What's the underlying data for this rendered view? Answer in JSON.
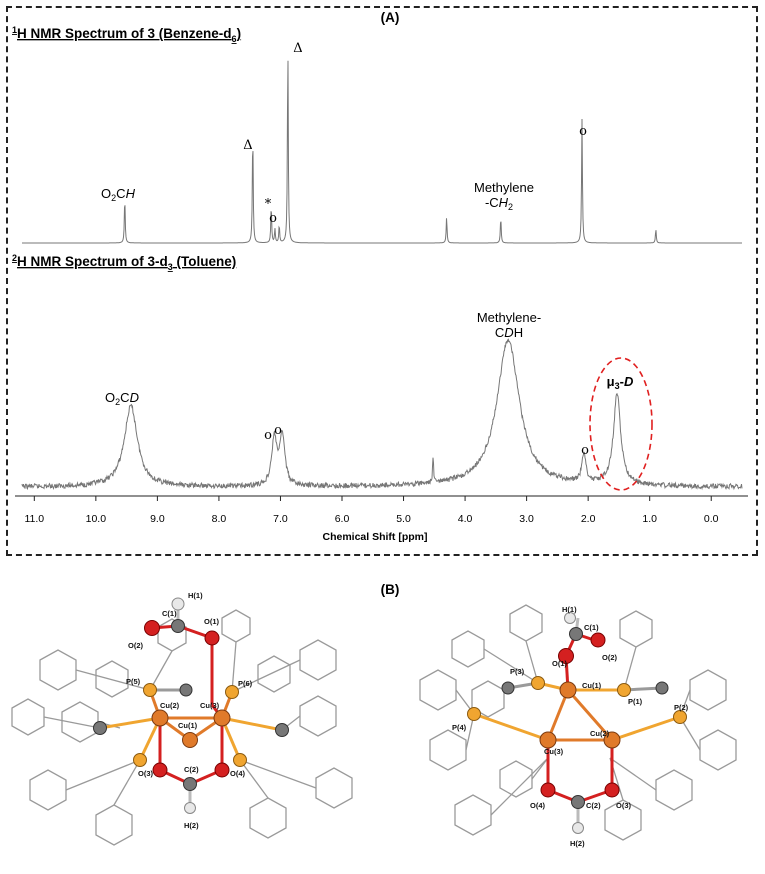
{
  "panel_a_label": "(A)",
  "panel_b_label": "(B)",
  "chart_data": [
    {
      "type": "line",
      "title": "1H NMR Spectrum of 3 (Benzene-d6)",
      "title_parts": {
        "sup": "1",
        "main": "H NMR Spectrum of 3 (Benzene-d",
        "sub": "6",
        "end": ")"
      },
      "xlabel": "Chemical Shift [ppm]",
      "xlim": [
        11.2,
        -0.5
      ],
      "peaks": [
        {
          "x": 9.53,
          "rel_height": 0.23
        },
        {
          "x": 7.45,
          "rel_height": 0.56
        },
        {
          "x": 7.15,
          "rel_height": 0.19
        },
        {
          "x": 7.09,
          "rel_height": 0.07
        },
        {
          "x": 7.02,
          "rel_height": 0.09
        },
        {
          "x": 6.88,
          "rel_height": 1.0
        },
        {
          "x": 4.3,
          "rel_height": 0.13
        },
        {
          "x": 3.42,
          "rel_height": 0.13
        },
        {
          "x": 2.1,
          "rel_height": 0.62
        },
        {
          "x": 0.9,
          "rel_height": 0.07
        }
      ],
      "annotations": [
        {
          "x": 9.53,
          "text": "O",
          "sub": "2",
          "tail": "C",
          "ital": "H"
        },
        {
          "x": 7.45,
          "text": "Δ"
        },
        {
          "x": 7.15,
          "text": "*"
        },
        {
          "x": 7.09,
          "text": "o"
        },
        {
          "x": 6.88,
          "text": "Δ"
        },
        {
          "x": 3.42,
          "text": "Methylene",
          "line2": "-C",
          "line2_ital": "H",
          "line2_sub": "2"
        },
        {
          "x": 2.1,
          "text": "o"
        }
      ]
    },
    {
      "type": "line",
      "title": "2H NMR Spectrum of 3-d3 (Toluene)",
      "title_parts": {
        "sup": "2",
        "main": "H NMR Spectrum of 3-d",
        "sub": "3",
        "end": " (Toluene)"
      },
      "xlabel": "Chemical Shift [ppm]",
      "xlim": [
        11.2,
        -0.5
      ],
      "x_ticks": [
        "11.0",
        "10.0",
        "9.0",
        "8.0",
        "7.0",
        "6.0",
        "5.0",
        "4.0",
        "3.0",
        "2.0",
        "1.0",
        "0.0"
      ],
      "x_tick_values": [
        11,
        10,
        9,
        8,
        7,
        6,
        5,
        4,
        3,
        2,
        1,
        0
      ],
      "peaks": [
        {
          "x": 9.43,
          "rel_height": 0.55
        },
        {
          "x": 7.1,
          "rel_height": 0.32
        },
        {
          "x": 6.97,
          "rel_height": 0.34
        },
        {
          "x": 4.52,
          "rel_height": 0.18
        },
        {
          "x": 3.3,
          "rel_height": 1.0
        },
        {
          "x": 2.07,
          "rel_height": 0.19
        },
        {
          "x": 1.53,
          "rel_height": 0.62
        }
      ],
      "annotations": [
        {
          "x": 9.43,
          "text": "O",
          "sub": "2",
          "tail": "C",
          "ital": "D"
        },
        {
          "x": 7.1,
          "text": "o"
        },
        {
          "x": 6.97,
          "text": "o"
        },
        {
          "x": 3.3,
          "text": "Methylene-",
          "line2": "C",
          "line2_ital": "D",
          "line2_tail": "H"
        },
        {
          "x": 2.07,
          "text": "o"
        },
        {
          "x": 1.53,
          "text": "μ",
          "sub": "3",
          "tail": "-",
          "ital": "D"
        }
      ]
    }
  ],
  "structure_left_labels": [
    "H(1)",
    "C(1)",
    "O(2)",
    "O(1)",
    "P(5)",
    "P(6)",
    "Cu(2)",
    "Cu(3)",
    "Cu(1)",
    "O(3)",
    "O(4)",
    "C(2)",
    "H(2)"
  ],
  "structure_right_labels": [
    "H(1)",
    "C(1)",
    "O(1)",
    "O(2)",
    "P(3)",
    "Cu(1)",
    "P(1)",
    "P(2)",
    "P(4)",
    "Cu(2)",
    "Cu(3)",
    "O(4)",
    "C(2)",
    "O(3)",
    "H(2)"
  ],
  "colors": {
    "peak_line": "#777777",
    "baseline": "#888888",
    "dashed_ellipse": "#e02020",
    "copper": "#e07a2a",
    "phosphorus": "#f0a530",
    "oxygen": "#d42020",
    "carbon": "#777777",
    "hydrogen": "#dddddd",
    "bond_gray": "#9a9a9a"
  }
}
